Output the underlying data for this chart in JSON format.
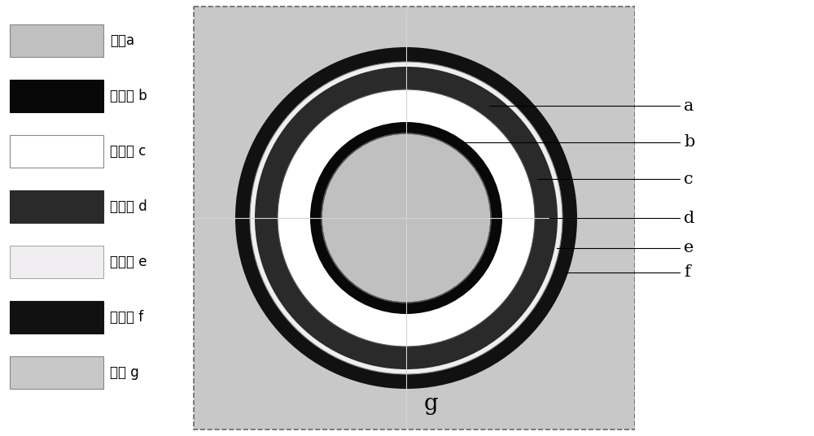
{
  "bg_color": "#c8c8c8",
  "figure_bg": "#ffffff",
  "legend_bg": "#ffffff",
  "diagram_bg": "#c8c8c8",
  "border_color": "#666666",
  "crosshair_color": "#d4d4d4",
  "radii": {
    "f_outer": 210,
    "f_inner": 192,
    "e_outer": 192,
    "e_inner": 186,
    "d_outer": 186,
    "d_inner": 158,
    "c_outer": 158,
    "c_inner": 118,
    "b_outer": 118,
    "b_inner": 104,
    "a_outer": 104,
    "a_inner": 0
  },
  "colors": {
    "f": "#111111",
    "e": "#f0eef0",
    "d": "#2a2a2a",
    "c": "#ffffff",
    "b": "#080808",
    "a": "#c0c0c0",
    "bg": "#c8c8c8"
  },
  "legend_items": [
    {
      "label": "导体a",
      "color": "#c0c0c0",
      "border": "#888888"
    },
    {
      "label": "内屏蔽 b",
      "color": "#080808",
      "border": "#080808"
    },
    {
      "label": "络缘层 c",
      "color": "#ffffff",
      "border": "#888888"
    },
    {
      "label": "外屏蔽 d",
      "color": "#2a2a2a",
      "border": "#2a2a2a"
    },
    {
      "label": "铝护套 e",
      "color": "#f0eef0",
      "border": "#aaaaaa"
    },
    {
      "label": "外护套 f",
      "color": "#111111",
      "border": "#111111"
    },
    {
      "label": "空气 g",
      "color": "#c8c8c8",
      "border": "#888888"
    }
  ],
  "annotation_labels": [
    "a",
    "b",
    "c",
    "d",
    "e",
    "f"
  ],
  "g_label": "g"
}
